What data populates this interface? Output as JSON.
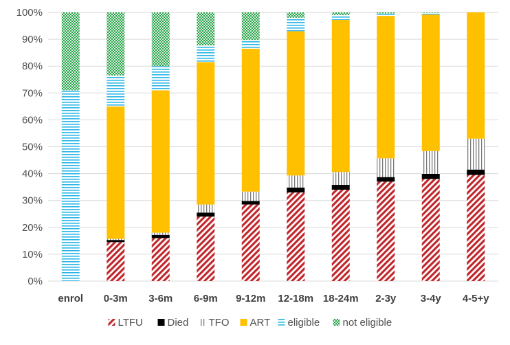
{
  "chart_data": {
    "type": "bar",
    "stacked": true,
    "normalized_percent": true,
    "categories": [
      "enrol",
      "0-3m",
      "3-6m",
      "6-9m",
      "9-12m",
      "12-18m",
      "18-24m",
      "2-3y",
      "3-4y",
      "4-5+y"
    ],
    "ylim": [
      0,
      100
    ],
    "y_ticks": [
      "0%",
      "10%",
      "20%",
      "30%",
      "40%",
      "50%",
      "60%",
      "70%",
      "80%",
      "90%",
      "100%"
    ],
    "grid": "horizontal",
    "legend_position": "bottom",
    "series": [
      {
        "name": "LTFU",
        "pattern": "diagonal-stripes",
        "color": "#c0282d",
        "values": [
          0,
          14.5,
          16,
          24,
          28.5,
          33,
          34,
          37,
          38,
          39.5
        ]
      },
      {
        "name": "Died",
        "pattern": "solid",
        "color": "#000000",
        "values": [
          0,
          0.8,
          1.2,
          1.5,
          1.3,
          1.8,
          1.8,
          1.7,
          1.9,
          2
        ]
      },
      {
        "name": "TFO",
        "pattern": "vertical-lines",
        "color": "#808080",
        "values": [
          0,
          0.4,
          0.8,
          3,
          3.5,
          4.5,
          4.8,
          7,
          8.5,
          11.5
        ]
      },
      {
        "name": "ART",
        "pattern": "solid",
        "color": "#ffc000",
        "values": [
          0,
          49.3,
          53,
          53,
          53.2,
          53.7,
          56.6,
          53,
          50.8,
          47
        ]
      },
      {
        "name": "eligible",
        "pattern": "horizontal-lines",
        "color": "#2ab5e6",
        "values": [
          71,
          11.5,
          9,
          6.2,
          3.2,
          5,
          1.8,
          0.9,
          0.6,
          0
        ]
      },
      {
        "name": "not eligible",
        "pattern": "crosshatch",
        "color": "#2ba24c",
        "values": [
          29,
          23.5,
          20,
          12.3,
          10.3,
          2,
          1,
          0.4,
          0.2,
          0
        ]
      }
    ]
  }
}
